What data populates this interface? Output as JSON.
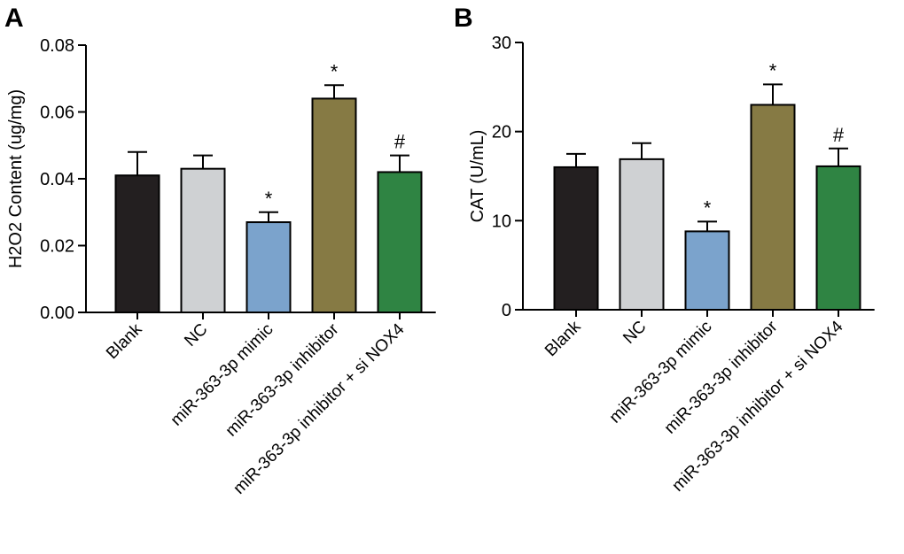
{
  "chart_data": [
    {
      "panel": "A",
      "type": "bar",
      "ylabel": "H2O2 Content (ug/mg)",
      "xlabel": "",
      "ylim": [
        0,
        0.08
      ],
      "yticks": [
        0,
        0.02,
        0.04,
        0.06,
        0.08
      ],
      "ytick_labels": [
        "0.00",
        "0.02",
        "0.04",
        "0.06",
        "0.08"
      ],
      "categories": [
        "Blank",
        "NC",
        "miR-363-3p mimic",
        "miR-363-3p inhibitor",
        "miR-363-3p inhibitor + si NOX4"
      ],
      "values": [
        0.041,
        0.043,
        0.027,
        0.064,
        0.042
      ],
      "errors": [
        0.007,
        0.004,
        0.003,
        0.004,
        0.005
      ],
      "significance": [
        "",
        "",
        "*",
        "*",
        "#"
      ],
      "colors": [
        "#231f20",
        "#cfd1d3",
        "#7ba3cc",
        "#867a44",
        "#2f8443"
      ]
    },
    {
      "panel": "B",
      "type": "bar",
      "ylabel": "CAT (U/mL)",
      "xlabel": "",
      "ylim": [
        0,
        30
      ],
      "yticks": [
        0,
        10,
        20,
        30
      ],
      "ytick_labels": [
        "0",
        "10",
        "20",
        "30"
      ],
      "categories": [
        "Blank",
        "NC",
        "miR-363-3p mimic",
        "miR-363-3p inhibitor",
        "miR-363-3p inhibitor + si NOX4"
      ],
      "values": [
        16.0,
        16.9,
        8.8,
        23.0,
        16.1
      ],
      "errors": [
        1.5,
        1.8,
        1.1,
        2.3,
        2.0
      ],
      "significance": [
        "",
        "",
        "*",
        "*",
        "#"
      ],
      "colors": [
        "#231f20",
        "#cfd1d3",
        "#7ba3cc",
        "#867a44",
        "#2f8443"
      ]
    }
  ]
}
